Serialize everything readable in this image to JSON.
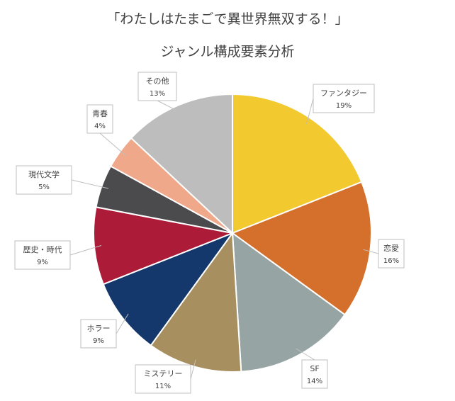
{
  "title": "「わたしはたまごで異世界無双する！」",
  "subtitle": "ジャンル構成要素分析",
  "chart_data": {
    "type": "pie",
    "title": "ジャンル構成要素分析",
    "start_angle_deg": 0,
    "direction": "clockwise",
    "slices": [
      {
        "label": "ファンタジー",
        "value": 19,
        "display": "19%",
        "color": "#f2c92f"
      },
      {
        "label": "恋愛",
        "value": 16,
        "display": "16%",
        "color": "#d4702b"
      },
      {
        "label": "SF",
        "value": 14,
        "display": "14%",
        "color": "#97a4a4"
      },
      {
        "label": "ミステリー",
        "value": 11,
        "display": "11%",
        "color": "#a78f60"
      },
      {
        "label": "ホラー",
        "value": 9,
        "display": "9%",
        "color": "#14376c"
      },
      {
        "label": "歴史・時代",
        "value": 9,
        "display": "9%",
        "color": "#ac1b38"
      },
      {
        "label": "現代文学",
        "value": 5,
        "display": "5%",
        "color": "#4b4b4d"
      },
      {
        "label": "青春",
        "value": 4,
        "display": "4%",
        "color": "#f0a88a"
      },
      {
        "label": "その他",
        "value": 13,
        "display": "13%",
        "color": "#bdbdbd"
      }
    ]
  }
}
